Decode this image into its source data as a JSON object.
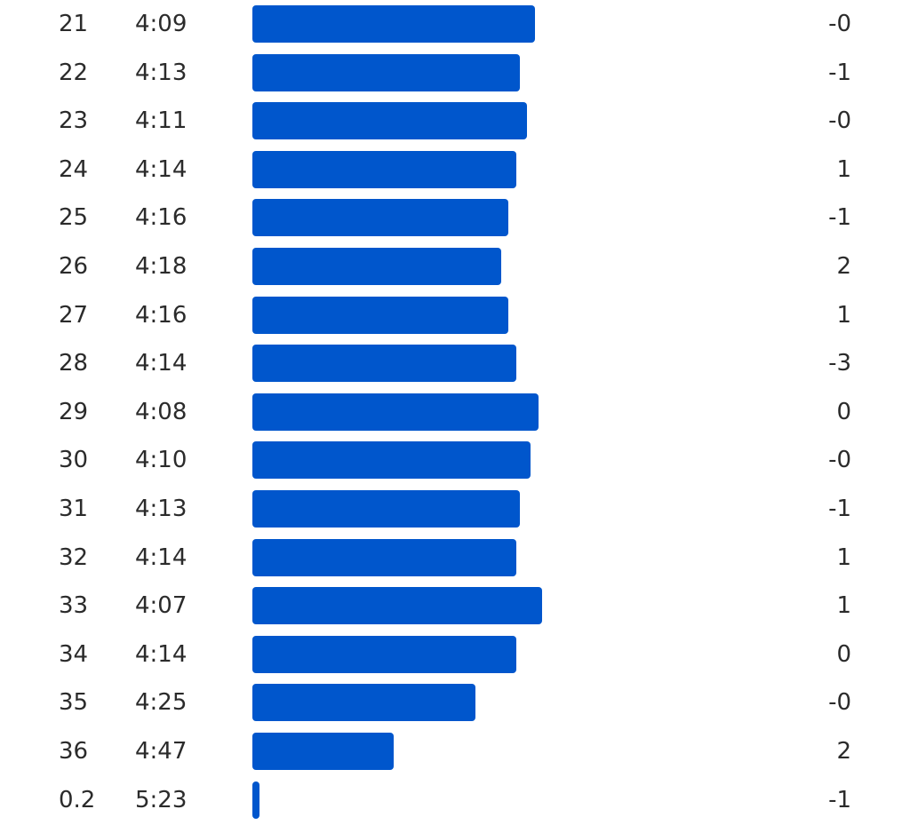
{
  "colors": {
    "bar": "#0056cc",
    "text": "#2b2b2b"
  },
  "chart_data": {
    "type": "bar",
    "orientation": "horizontal",
    "pace_axis_range_seconds": [
      191,
      325
    ],
    "splits": [
      {
        "km": "21",
        "pace": "4:09",
        "pace_seconds": 249,
        "elev": "-0"
      },
      {
        "km": "22",
        "pace": "4:13",
        "pace_seconds": 253,
        "elev": "-1"
      },
      {
        "km": "23",
        "pace": "4:11",
        "pace_seconds": 251,
        "elev": "-0"
      },
      {
        "km": "24",
        "pace": "4:14",
        "pace_seconds": 254,
        "elev": "1"
      },
      {
        "km": "25",
        "pace": "4:16",
        "pace_seconds": 256,
        "elev": "-1"
      },
      {
        "km": "26",
        "pace": "4:18",
        "pace_seconds": 258,
        "elev": "2"
      },
      {
        "km": "27",
        "pace": "4:16",
        "pace_seconds": 256,
        "elev": "1"
      },
      {
        "km": "28",
        "pace": "4:14",
        "pace_seconds": 254,
        "elev": "-3"
      },
      {
        "km": "29",
        "pace": "4:08",
        "pace_seconds": 248,
        "elev": "0"
      },
      {
        "km": "30",
        "pace": "4:10",
        "pace_seconds": 250,
        "elev": "-0"
      },
      {
        "km": "31",
        "pace": "4:13",
        "pace_seconds": 253,
        "elev": "-1"
      },
      {
        "km": "32",
        "pace": "4:14",
        "pace_seconds": 254,
        "elev": "1"
      },
      {
        "km": "33",
        "pace": "4:07",
        "pace_seconds": 247,
        "elev": "1"
      },
      {
        "km": "34",
        "pace": "4:14",
        "pace_seconds": 254,
        "elev": "0"
      },
      {
        "km": "35",
        "pace": "4:25",
        "pace_seconds": 265,
        "elev": "-0"
      },
      {
        "km": "36",
        "pace": "4:47",
        "pace_seconds": 287,
        "elev": "2"
      },
      {
        "km": "0.2",
        "pace": "5:23",
        "pace_seconds": 323,
        "elev": "-1"
      }
    ]
  }
}
